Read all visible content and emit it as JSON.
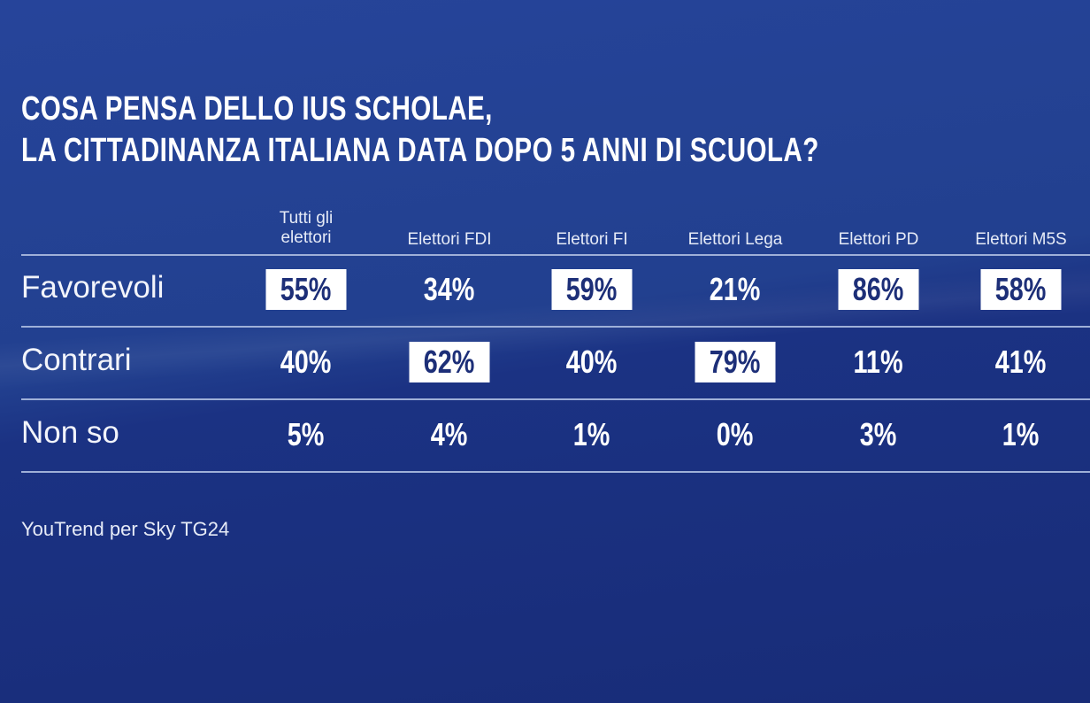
{
  "chart_data": {
    "type": "table",
    "title_lines": [
      "COSA PENSA DELLO IUS SCHOLAE,",
      "LA CITTADINANZA ITALIANA DATA DOPO 5 ANNI DI SCUOLA?"
    ],
    "columns": [
      "Tutti gli elettori",
      "Elettori FDI",
      "Elettori FI",
      "Elettori Lega",
      "Elettori PD",
      "Elettori M5S"
    ],
    "rows": [
      {
        "label": "Favorevoli",
        "values": [
          "55%",
          "34%",
          "59%",
          "21%",
          "86%",
          "58%"
        ],
        "highlight": [
          true,
          false,
          true,
          false,
          true,
          true
        ]
      },
      {
        "label": "Contrari",
        "values": [
          "40%",
          "62%",
          "40%",
          "79%",
          "11%",
          "41%"
        ],
        "highlight": [
          false,
          true,
          false,
          true,
          false,
          false
        ]
      },
      {
        "label": "Non so",
        "values": [
          "5%",
          "4%",
          "1%",
          "0%",
          "3%",
          "1%"
        ],
        "highlight": [
          false,
          false,
          false,
          false,
          false,
          false
        ]
      }
    ],
    "source": "YouTrend per Sky TG24"
  },
  "colors": {
    "background": "#1f3a8a",
    "highlight_bg": "#ffffff",
    "highlight_text": "#1d2f78"
  }
}
